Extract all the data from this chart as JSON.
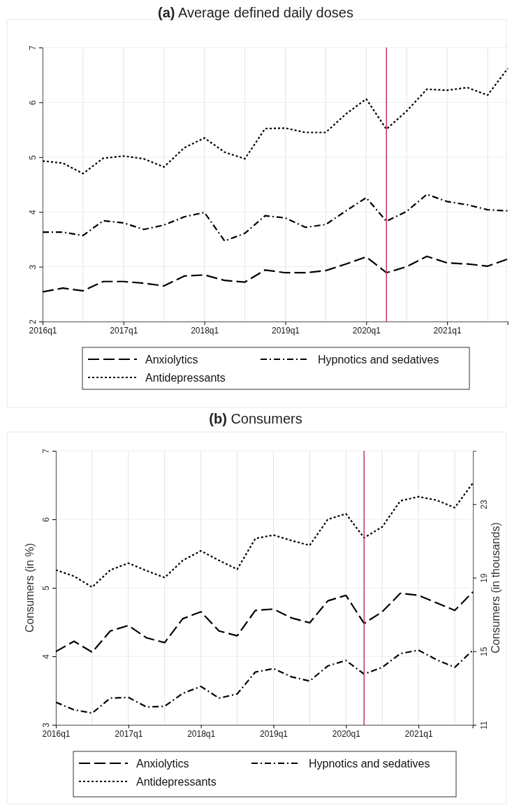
{
  "chart_data": [
    {
      "type": "line",
      "title": "(a) Average defined daily doses",
      "categories": [
        "2016q1",
        null,
        null,
        null,
        "2017q1",
        null,
        null,
        null,
        "2018q1",
        null,
        null,
        null,
        "2019q1",
        null,
        null,
        null,
        "2020q1",
        null,
        null,
        null,
        "2021q1",
        null,
        null,
        null
      ],
      "ylim": [
        2,
        7
      ],
      "yticks": [
        2,
        3,
        4,
        5,
        6,
        7
      ],
      "grid": true,
      "legend": "bottom",
      "series": [
        {
          "name": "Anxiolytics",
          "color": "#000000",
          "line_style": "dashed",
          "values": [
            2.54,
            2.61,
            2.56,
            2.73,
            2.73,
            2.7,
            2.65,
            2.83,
            2.85,
            2.75,
            2.72,
            2.94,
            2.89,
            2.89,
            2.93,
            3.05,
            3.18,
            2.89,
            3.0,
            3.19,
            3.07,
            3.05,
            3.01,
            3.14
          ]
        },
        {
          "name": "Hypnotics and sedatives",
          "color": "#000000",
          "line_style": "dashdot",
          "values": [
            3.63,
            3.63,
            3.57,
            3.84,
            3.8,
            3.68,
            3.76,
            3.91,
            3.99,
            3.47,
            3.61,
            3.93,
            3.89,
            3.72,
            3.77,
            4.02,
            4.26,
            3.83,
            4.01,
            4.32,
            4.19,
            4.13,
            4.04,
            4.02
          ]
        },
        {
          "name": "Antidepressants",
          "color": "#000000",
          "line_style": "dotted",
          "values": [
            4.93,
            4.89,
            4.7,
            4.98,
            5.02,
            4.97,
            4.82,
            5.17,
            5.35,
            5.09,
            4.97,
            5.52,
            5.53,
            5.45,
            5.45,
            5.79,
            6.06,
            5.51,
            5.84,
            6.24,
            6.22,
            6.27,
            6.13,
            6.62
          ]
        }
      ]
    },
    {
      "type": "line",
      "title": "(b) Consumers",
      "ylabel": "Consumers (in %)",
      "y2label": "Consumers (in thousands)",
      "categories": [
        "2016q1",
        null,
        null,
        null,
        "2017q1",
        null,
        null,
        null,
        "2018q1",
        null,
        null,
        null,
        "2019q1",
        null,
        null,
        null,
        "2020q1",
        null,
        null,
        null,
        "2021q1",
        null,
        null,
        null
      ],
      "ylim": [
        3,
        7
      ],
      "yticks": [
        3,
        4,
        5,
        6,
        7
      ],
      "y2lim": [
        11,
        25.9
      ],
      "y2ticks": [
        11,
        15,
        19,
        23
      ],
      "grid": true,
      "legend": "bottom",
      "series": [
        {
          "name": "Anxiolytics",
          "color": "#000000",
          "line_style": "dashed",
          "values": [
            4.07,
            4.22,
            4.06,
            4.37,
            4.45,
            4.27,
            4.2,
            4.55,
            4.65,
            4.37,
            4.3,
            4.67,
            4.69,
            4.56,
            4.49,
            4.81,
            4.89,
            4.48,
            4.65,
            4.92,
            4.89,
            4.78,
            4.67,
            4.94
          ]
        },
        {
          "name": "Hypnotics and sedatives",
          "color": "#000000",
          "line_style": "dashdot",
          "values": [
            3.33,
            3.22,
            3.17,
            3.39,
            3.4,
            3.26,
            3.27,
            3.46,
            3.56,
            3.39,
            3.45,
            3.77,
            3.82,
            3.7,
            3.64,
            3.86,
            3.94,
            3.74,
            3.84,
            4.04,
            4.09,
            3.95,
            3.84,
            4.09
          ]
        },
        {
          "name": "Antidepressants",
          "color": "#000000",
          "line_style": "dotted",
          "values": [
            5.26,
            5.17,
            5.01,
            5.26,
            5.36,
            5.25,
            5.15,
            5.4,
            5.54,
            5.4,
            5.27,
            5.72,
            5.77,
            5.69,
            5.62,
            6.0,
            6.08,
            5.73,
            5.89,
            6.27,
            6.33,
            6.28,
            6.17,
            6.53
          ]
        }
      ]
    }
  ]
}
